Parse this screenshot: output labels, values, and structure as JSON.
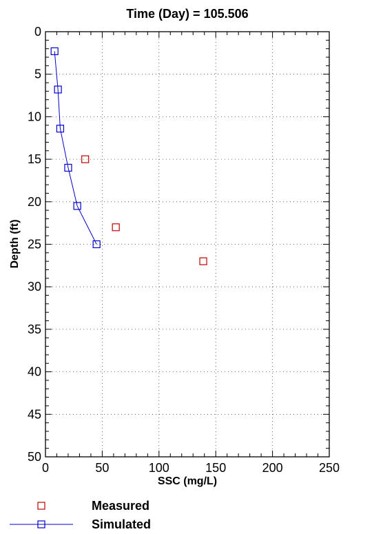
{
  "chart_data": {
    "type": "scatter",
    "title": "Time (Day) = 105.506",
    "xlabel": "SSC (mg/L)",
    "ylabel": "Depth (ft)",
    "xlim": [
      0,
      250
    ],
    "ylim": [
      0,
      50
    ],
    "y_inverted": true,
    "x_ticks": [
      0,
      50,
      100,
      150,
      200,
      250
    ],
    "y_ticks": [
      0,
      5,
      10,
      15,
      20,
      25,
      30,
      35,
      40,
      45,
      50
    ],
    "grid": "dotted",
    "legend_position": "bottom-left",
    "series": [
      {
        "name": "Measured",
        "mode": "markers",
        "marker": "square",
        "color": "#c00000",
        "points": [
          {
            "x": 35,
            "y": 15
          },
          {
            "x": 62,
            "y": 23
          },
          {
            "x": 139,
            "y": 27
          }
        ]
      },
      {
        "name": "Simulated",
        "mode": "lines+markers",
        "marker": "square",
        "color": "#0000cc",
        "points": [
          {
            "x": 8,
            "y": 2.3
          },
          {
            "x": 11,
            "y": 6.8
          },
          {
            "x": 13,
            "y": 11.4
          },
          {
            "x": 20,
            "y": 16.0
          },
          {
            "x": 28,
            "y": 20.5
          },
          {
            "x": 45,
            "y": 25.0
          }
        ]
      }
    ]
  }
}
